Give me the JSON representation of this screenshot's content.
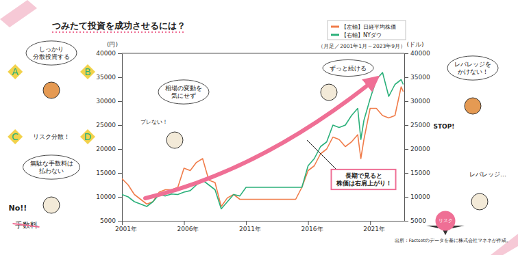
{
  "chart_data": {
    "type": "line",
    "title": "つみたて投資を成功させるには？",
    "subtitle": "（月足／2001年1月～2023年9月）",
    "y_label": "(円)",
    "y2_label": "(ドル)",
    "x": [
      2001,
      2001.5,
      2002,
      2002.5,
      2003,
      2003.5,
      2004,
      2004.5,
      2005,
      2005.5,
      2006,
      2006.5,
      2007,
      2007.5,
      2008,
      2008.5,
      2009,
      2009.5,
      2010,
      2010.5,
      2011,
      2011.5,
      2012,
      2012.5,
      2013,
      2013.5,
      2014,
      2014.5,
      2015,
      2015.5,
      2016,
      2016.5,
      2017,
      2017.5,
      2018,
      2018.5,
      2019,
      2019.5,
      2020,
      2020.25,
      2020.5,
      2021,
      2021.5,
      2022,
      2022.5,
      2023,
      2023.5,
      2023.67
    ],
    "series": [
      {
        "name": "【左軸】日経平均株価",
        "color": "#f07c4a",
        "values": [
          13800,
          12500,
          10500,
          9500,
          8500,
          9000,
          11000,
          11500,
          11500,
          12000,
          16000,
          15500,
          17200,
          18000,
          13500,
          13000,
          8000,
          9800,
          10500,
          9500,
          9500,
          9500,
          9500,
          9500,
          9500,
          9500,
          9500,
          9500,
          9500,
          12000,
          15500,
          16500,
          19000,
          20000,
          22500,
          22000,
          20500,
          21500,
          23000,
          18000,
          22000,
          28500,
          28500,
          27000,
          26500,
          27000,
          33000,
          32000
        ]
      },
      {
        "name": "【右軸】NYダウ",
        "color": "#2bb07a",
        "axis": "y2",
        "values": [
          10500,
          10000,
          9000,
          8500,
          8000,
          9000,
          10500,
          10200,
          10600,
          10500,
          11000,
          11300,
          12500,
          13500,
          12500,
          11500,
          7500,
          9000,
          10500,
          10200,
          12000,
          12000,
          12000,
          12000,
          12000,
          12000,
          12000,
          12000,
          12000,
          12000,
          16500,
          18000,
          20500,
          21500,
          25000,
          24500,
          25000,
          27000,
          28500,
          22000,
          26000,
          30500,
          34500,
          36000,
          31000,
          33500,
          34500,
          33500
        ]
      }
    ],
    "xlim": [
      2001,
      2023.75
    ],
    "xticks": [
      {
        "value": 2001,
        "label": "2001年"
      },
      {
        "value": 2006,
        "label": "2006年"
      },
      {
        "value": 2011,
        "label": "2011年"
      },
      {
        "value": 2016,
        "label": "2016年"
      },
      {
        "value": 2021,
        "label": "2021年"
      }
    ],
    "ylim": [
      5000,
      40000
    ],
    "yticks": [
      5000,
      10000,
      15000,
      20000,
      25000,
      30000,
      35000,
      40000
    ],
    "y2lim": [
      5000,
      40000
    ],
    "y2ticks": [
      5000,
      10000,
      15000,
      20000,
      25000,
      30000,
      35000,
      40000
    ],
    "grid": false,
    "legend": "top-right",
    "annotations": [
      [
        "しっかり",
        "分散投資する"
      ],
      [
        "A"
      ],
      [
        "B"
      ],
      [
        "C"
      ],
      [
        "D"
      ],
      [
        "リスク分散！"
      ],
      [
        "無駄な手数料は",
        "払わない"
      ],
      [
        "No!!"
      ],
      [
        "手数料"
      ],
      [
        "相場の変動を",
        "気にせず"
      ],
      [
        "ブレない！"
      ],
      [
        "ずっと続ける"
      ],
      [
        "長期で見ると",
        "株価は右肩上がり！"
      ],
      [
        "レバレッジを",
        "かけない！"
      ],
      [
        "STOP!"
      ],
      [
        "レバレッジ…"
      ],
      [
        "リスク"
      ],
      [
        "出所：Factsetのデータを基に株式会社マネネが作成。"
      ]
    ]
  }
}
